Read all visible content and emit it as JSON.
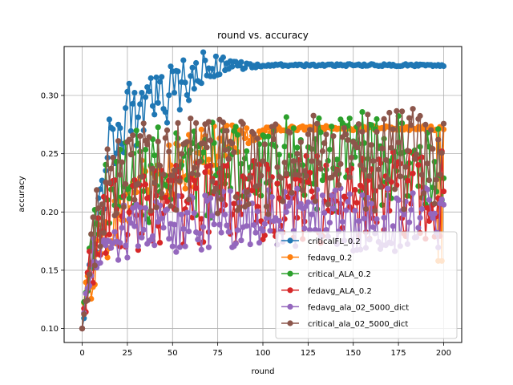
{
  "chart_data": {
    "type": "line",
    "title": "round vs. accuracy",
    "xlabel": "round",
    "ylabel": "accuracy",
    "xlim": [
      -10,
      210
    ],
    "ylim": [
      0.088,
      0.342
    ],
    "xticks": [
      0,
      25,
      50,
      75,
      100,
      125,
      150,
      175,
      200
    ],
    "yticks": [
      0.1,
      0.15,
      0.2,
      0.25,
      0.3
    ],
    "grid": true,
    "legend_position": "lower-right",
    "markers": "circle",
    "x_range": [
      0,
      200
    ],
    "series": [
      {
        "name": "criticalFL_0.2",
        "color": "#1f77b4",
        "anchors": [
          [
            0,
            0.1
          ],
          [
            3,
            0.15
          ],
          [
            6,
            0.17
          ],
          [
            10,
            0.22
          ],
          [
            15,
            0.25
          ],
          [
            20,
            0.27
          ],
          [
            25,
            0.285
          ],
          [
            30,
            0.28
          ],
          [
            35,
            0.285
          ],
          [
            40,
            0.295
          ],
          [
            45,
            0.295
          ],
          [
            50,
            0.305
          ],
          [
            55,
            0.31
          ],
          [
            60,
            0.315
          ],
          [
            65,
            0.32
          ],
          [
            70,
            0.325
          ],
          [
            75,
            0.325
          ],
          [
            80,
            0.328
          ],
          [
            85,
            0.327
          ],
          [
            90,
            0.325
          ],
          [
            95,
            0.325
          ],
          [
            100,
            0.326
          ],
          [
            200,
            0.326
          ]
        ],
        "noise": [
          [
            0,
            0.005
          ],
          [
            5,
            0.03
          ],
          [
            20,
            0.03
          ],
          [
            60,
            0.02
          ],
          [
            85,
            0.004
          ],
          [
            100,
            0.001
          ],
          [
            200,
            0.001
          ]
        ]
      },
      {
        "name": "fedavg_0.2",
        "color": "#ff7f0e",
        "anchors": [
          [
            0,
            0.1
          ],
          [
            3,
            0.14
          ],
          [
            8,
            0.16
          ],
          [
            15,
            0.19
          ],
          [
            25,
            0.21
          ],
          [
            35,
            0.22
          ],
          [
            45,
            0.23
          ],
          [
            55,
            0.24
          ],
          [
            65,
            0.25
          ],
          [
            75,
            0.255
          ],
          [
            85,
            0.262
          ],
          [
            95,
            0.268
          ],
          [
            105,
            0.271
          ],
          [
            115,
            0.272
          ],
          [
            200,
            0.272
          ]
        ],
        "noise": [
          [
            0,
            0.005
          ],
          [
            5,
            0.025
          ],
          [
            60,
            0.03
          ],
          [
            95,
            0.008
          ],
          [
            110,
            0.002
          ],
          [
            190,
            0.002
          ],
          [
            200,
            0.002
          ]
        ],
        "end_points": [
          [
            197,
            0.158
          ],
          [
            199,
            0.158
          ]
        ]
      },
      {
        "name": "critical_ALA_0.2",
        "color": "#2ca02c",
        "anchors": [
          [
            0,
            0.1
          ],
          [
            5,
            0.17
          ],
          [
            15,
            0.215
          ],
          [
            30,
            0.23
          ],
          [
            60,
            0.235
          ],
          [
            100,
            0.24
          ],
          [
            150,
            0.245
          ],
          [
            200,
            0.24
          ]
        ],
        "noise": [
          [
            0,
            0.01
          ],
          [
            10,
            0.04
          ],
          [
            200,
            0.045
          ]
        ]
      },
      {
        "name": "fedavg_ALA_0.2",
        "color": "#d62728",
        "anchors": [
          [
            0,
            0.1
          ],
          [
            5,
            0.16
          ],
          [
            15,
            0.195
          ],
          [
            40,
            0.205
          ],
          [
            80,
            0.21
          ],
          [
            120,
            0.21
          ],
          [
            160,
            0.215
          ],
          [
            200,
            0.215
          ]
        ],
        "noise": [
          [
            0,
            0.01
          ],
          [
            10,
            0.035
          ],
          [
            200,
            0.04
          ]
        ]
      },
      {
        "name": "fedavg_ala_02_5000_dict",
        "color": "#9467bd",
        "anchors": [
          [
            0,
            0.1
          ],
          [
            5,
            0.16
          ],
          [
            15,
            0.18
          ],
          [
            40,
            0.19
          ],
          [
            80,
            0.195
          ],
          [
            120,
            0.195
          ],
          [
            160,
            0.195
          ],
          [
            200,
            0.195
          ]
        ],
        "noise": [
          [
            0,
            0.008
          ],
          [
            10,
            0.025
          ],
          [
            200,
            0.03
          ]
        ]
      },
      {
        "name": "critical_ala_02_5000_dict",
        "color": "#8c564b",
        "anchors": [
          [
            0,
            0.1
          ],
          [
            5,
            0.17
          ],
          [
            15,
            0.225
          ],
          [
            30,
            0.235
          ],
          [
            60,
            0.24
          ],
          [
            100,
            0.24
          ],
          [
            150,
            0.245
          ],
          [
            200,
            0.245
          ]
        ],
        "noise": [
          [
            0,
            0.01
          ],
          [
            10,
            0.04
          ],
          [
            200,
            0.045
          ]
        ]
      }
    ]
  }
}
